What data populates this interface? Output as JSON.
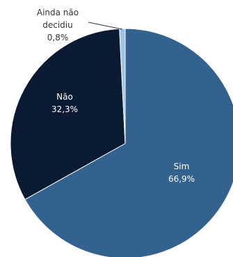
{
  "chart_data": {
    "type": "pie",
    "slices": [
      {
        "label": "Sim",
        "value_label": "66,9%",
        "value": 66.9,
        "color": "#33628f"
      },
      {
        "label": "Não",
        "value_label": "32,3%",
        "value": 32.3,
        "color": "#0b1a33"
      },
      {
        "label_lines": [
          "Ainda não",
          "decidiu"
        ],
        "value_label": "0,8%",
        "value": 0.8,
        "color": "#9dc3e6"
      }
    ],
    "start_angle_deg": 0,
    "direction": "clockwise",
    "legend": "none"
  }
}
